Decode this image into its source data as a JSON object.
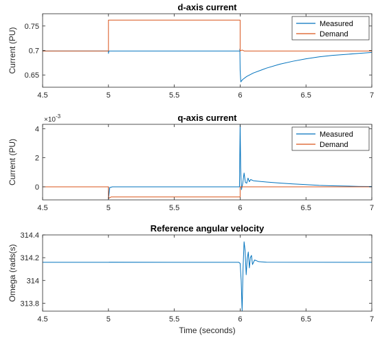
{
  "figure": {
    "xlabel": "Time (seconds)",
    "colors": {
      "measured": "#0072BD",
      "demand": "#D95319",
      "axis": "#262626"
    }
  },
  "chart_data": [
    {
      "type": "line",
      "title": "d-axis current",
      "xlabel": "",
      "ylabel": "Current (PU)",
      "xlim": [
        4.5,
        7
      ],
      "ylim": [
        0.625,
        0.775
      ],
      "xticks": [
        4.5,
        5,
        5.5,
        6,
        6.5,
        7
      ],
      "xtick_labels": [
        "4.5",
        "5",
        "5.5",
        "6",
        "6.5",
        "7"
      ],
      "yticks": [
        0.65,
        0.7,
        0.75
      ],
      "ytick_labels": [
        "0.65",
        "0.7",
        "0.75"
      ],
      "exponent_label": "",
      "legend": "top-right",
      "series": [
        {
          "name": "Measured",
          "x": [
            4.5,
            5.0,
            5.0,
            5.003,
            5.5,
            5.998,
            5.998,
            6.0,
            6.005,
            6.02,
            6.05,
            6.1,
            6.2,
            6.3,
            6.4,
            6.5,
            6.6,
            6.7,
            6.8,
            6.9,
            7.0
          ],
          "y": [
            0.699,
            0.699,
            0.694,
            0.699,
            0.699,
            0.699,
            0.703,
            0.66,
            0.636,
            0.641,
            0.647,
            0.654,
            0.664,
            0.672,
            0.678,
            0.683,
            0.687,
            0.69,
            0.692,
            0.694,
            0.696
          ]
        },
        {
          "name": "Demand",
          "x": [
            4.5,
            5.0,
            5.0,
            6.0,
            6.0,
            6.015,
            6.03,
            7.0
          ],
          "y": [
            0.699,
            0.699,
            0.762,
            0.762,
            0.699,
            0.701,
            0.699,
            0.699
          ]
        }
      ]
    },
    {
      "type": "line",
      "title": "q-axis current",
      "xlabel": "",
      "ylabel": "Current (PU)",
      "xlim": [
        4.5,
        7
      ],
      "ylim": [
        -0.9,
        4.3
      ],
      "xticks": [
        4.5,
        5,
        5.5,
        6,
        6.5,
        7
      ],
      "xtick_labels": [
        "4.5",
        "5",
        "5.5",
        "6",
        "6.5",
        "7"
      ],
      "yticks": [
        0,
        2,
        4
      ],
      "ytick_labels": [
        "0",
        "2",
        "4"
      ],
      "exponent_label": "×10-3",
      "exponent_base": "×10",
      "exponent_power": "-3",
      "legend": "top-right",
      "series": [
        {
          "name": "Measured",
          "x": [
            4.5,
            5.0,
            5.0,
            5.01,
            5.03,
            5.5,
            5.995,
            6.0,
            6.004,
            6.01,
            6.02,
            6.03,
            6.04,
            6.05,
            6.06,
            6.07,
            6.08,
            6.1,
            6.15,
            6.2,
            6.3,
            6.4,
            6.5,
            6.6,
            6.7,
            6.8,
            6.9,
            7.0
          ],
          "y": [
            0.0,
            0.0,
            -0.85,
            -0.05,
            0.0,
            0.0,
            0.0,
            4.3,
            1.3,
            -0.2,
            0.25,
            0.95,
            0.3,
            0.25,
            0.6,
            0.35,
            0.5,
            0.42,
            0.37,
            0.33,
            0.26,
            0.2,
            0.15,
            0.1,
            0.07,
            0.05,
            0.03,
            0.02
          ]
        },
        {
          "name": "Demand",
          "x": [
            4.5,
            5.0,
            5.0,
            5.02,
            6.0,
            6.0,
            7.0
          ],
          "y": [
            0.0,
            0.0,
            -0.8,
            -0.7,
            -0.7,
            0.0,
            0.0
          ]
        }
      ]
    },
    {
      "type": "line",
      "title": "Reference angular velocity",
      "xlabel": "Time (seconds)",
      "ylabel": "Omega (rads(s)",
      "xlim": [
        4.5,
        7
      ],
      "ylim": [
        313.73,
        314.4
      ],
      "xticks": [
        4.5,
        5,
        5.5,
        6,
        6.5,
        7
      ],
      "xtick_labels": [
        "4.5",
        "5",
        "5.5",
        "6",
        "6.5",
        "7"
      ],
      "yticks": [
        313.8,
        314,
        314.2,
        314.4
      ],
      "ytick_labels": [
        "313.8",
        "314",
        "314.2",
        "314.4"
      ],
      "exponent_label": "",
      "legend": "none",
      "series": [
        {
          "name": "",
          "x": [
            4.5,
            5.0,
            5.005,
            5.5,
            5.99,
            6.0,
            6.008,
            6.015,
            6.022,
            6.03,
            6.038,
            6.046,
            6.054,
            6.062,
            6.07,
            6.078,
            6.086,
            6.094,
            6.11,
            6.14,
            6.2,
            7.0
          ],
          "y": [
            314.159,
            314.159,
            314.16,
            314.159,
            314.159,
            314.15,
            314.0,
            313.73,
            314.1,
            314.34,
            314.26,
            314.05,
            314.19,
            314.25,
            314.11,
            314.2,
            314.22,
            314.14,
            314.18,
            314.165,
            314.16,
            314.159
          ]
        }
      ]
    }
  ]
}
